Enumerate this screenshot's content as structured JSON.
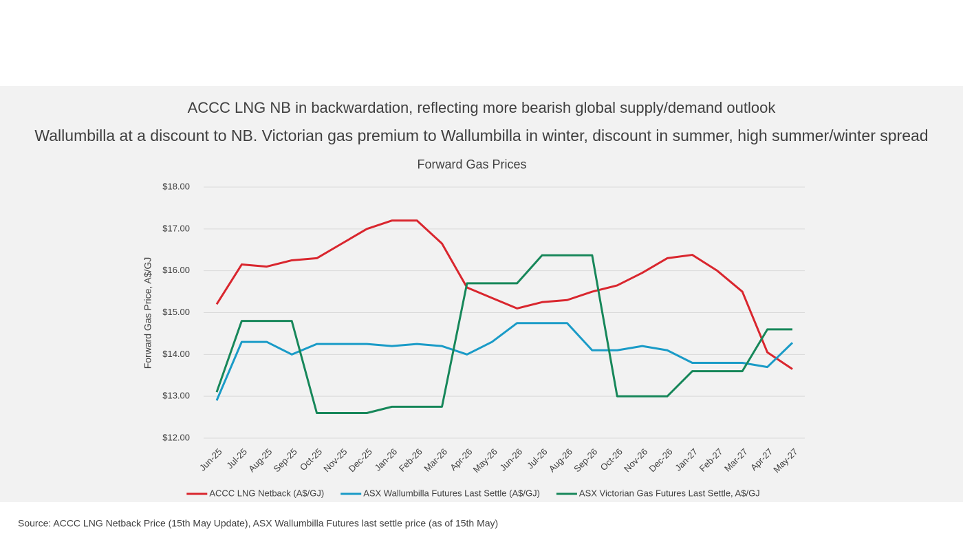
{
  "chart_data": {
    "type": "line",
    "title": "ACCC LNG NB in backwardation, reflecting more bearish global supply/demand outlook",
    "subtitle": "Wallumbilla at a discount to NB. Victorian gas premium to Wallumbilla in winter, discount in summer, high summer/winter spread",
    "chart_title": "Forward Gas Prices",
    "y_label": "Forward Gas Price, A$/GJ",
    "source": "Source:  ACCC LNG Netback Price (15th May Update), ASX Wallumbilla Futures last settle price (as of 15th May)",
    "categories": [
      "Jun-25",
      "Jul-25",
      "Aug-25",
      "Sep-25",
      "Oct-25",
      "Nov-25",
      "Dec-25",
      "Jan-26",
      "Feb-26",
      "Mar-26",
      "Apr-26",
      "May-26",
      "Jun-26",
      "Jul-26",
      "Aug-26",
      "Sep-26",
      "Oct-26",
      "Nov-26",
      "Dec-26",
      "Jan-27",
      "Feb-27",
      "Mar-27",
      "Apr-27",
      "May-27"
    ],
    "series": [
      {
        "name": "ACCC LNG Netback (A$/GJ)",
        "color": "#d9262e",
        "values": [
          15.2,
          16.15,
          16.1,
          16.25,
          16.3,
          16.65,
          17.0,
          17.2,
          17.2,
          16.65,
          15.6,
          15.35,
          15.1,
          15.25,
          15.3,
          15.5,
          15.65,
          15.95,
          16.3,
          16.38,
          16.0,
          15.5,
          14.05,
          13.65
        ]
      },
      {
        "name": "ASX Wallumbilla Futures Last Settle (A$/GJ)",
        "color": "#1a9bc7",
        "values": [
          12.9,
          14.3,
          14.3,
          14.0,
          14.25,
          14.25,
          14.25,
          14.2,
          14.25,
          14.2,
          14.0,
          14.3,
          14.75,
          14.75,
          14.75,
          14.1,
          14.1,
          14.2,
          14.1,
          13.8,
          13.8,
          13.8,
          13.7,
          14.28
        ]
      },
      {
        "name": "ASX Victorian Gas Futures Last Settle, A$/GJ",
        "color": "#17875a",
        "values": [
          13.1,
          14.8,
          14.8,
          14.8,
          12.6,
          12.6,
          12.6,
          12.75,
          12.75,
          12.75,
          15.7,
          15.7,
          15.7,
          16.37,
          16.37,
          16.37,
          13.0,
          13.0,
          13.0,
          13.6,
          13.6,
          13.6,
          14.6,
          14.6
        ]
      }
    ],
    "ylim": [
      12,
      18
    ],
    "yticks": [
      {
        "value": 12,
        "label": "$12.00"
      },
      {
        "value": 13,
        "label": "$13.00"
      },
      {
        "value": 14,
        "label": "$14.00"
      },
      {
        "value": 15,
        "label": "$15.00"
      },
      {
        "value": 16,
        "label": "$16.00"
      },
      {
        "value": 17,
        "label": "$17.00"
      },
      {
        "value": 18,
        "label": "$18.00"
      }
    ],
    "grid": true,
    "legend": "bottom"
  }
}
